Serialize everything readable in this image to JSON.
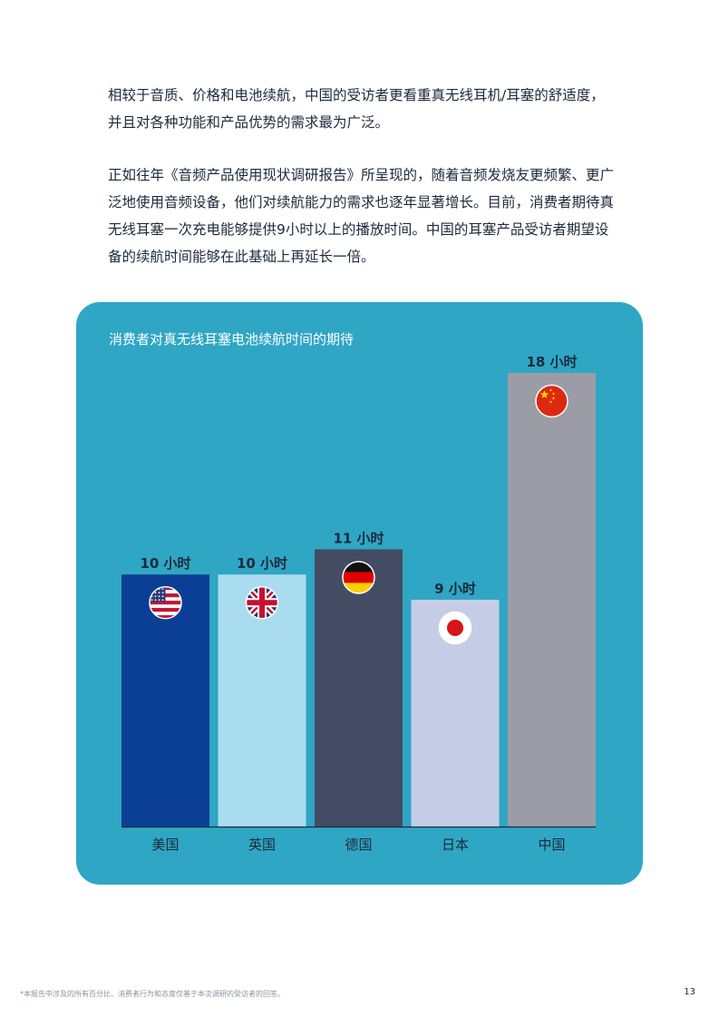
{
  "paragraphs": [
    "相较于音质、价格和电池续航，中国的受访者更看重真无线耳机/耳塞的舒适度，并且对各种功能和产品优势的需求最为广泛。",
    "正如往年《音频产品使用现状调研报告》所呈现的，随着音频发烧友更频繁、更广泛地使用音频设备，他们对续航能力的需求也逐年显著增长。目前，消费者期待真无线耳塞一次充电能够提供9小时以上的播放时间。中国的耳塞产品受访者期望设备的续航时间能够在此基础上再延长一倍。"
  ],
  "chart_data": {
    "type": "bar",
    "title": "消费者对真无线耳塞电池续航时间的期待",
    "categories": [
      "美国",
      "英国",
      "德国",
      "日本",
      "中国"
    ],
    "values": [
      10,
      10,
      11,
      9,
      18
    ],
    "value_labels": [
      "10 小时",
      "10 小时",
      "11 小时",
      "9 小时",
      "18 小时"
    ],
    "ylim": [
      0,
      18
    ],
    "grid": false,
    "colors": [
      "#0a3f95",
      "#a9dcee",
      "#434c63",
      "#c5cde6",
      "#9b9ca6"
    ],
    "flag_icons": [
      "us-flag-icon",
      "uk-flag-icon",
      "germany-flag-icon",
      "japan-flag-icon",
      "china-flag-icon"
    ]
  },
  "footnote": "*本报告中涉及的所有百分比、消费者行为和态度仅基于本次调研的受访者的回答。",
  "page_number": "13"
}
